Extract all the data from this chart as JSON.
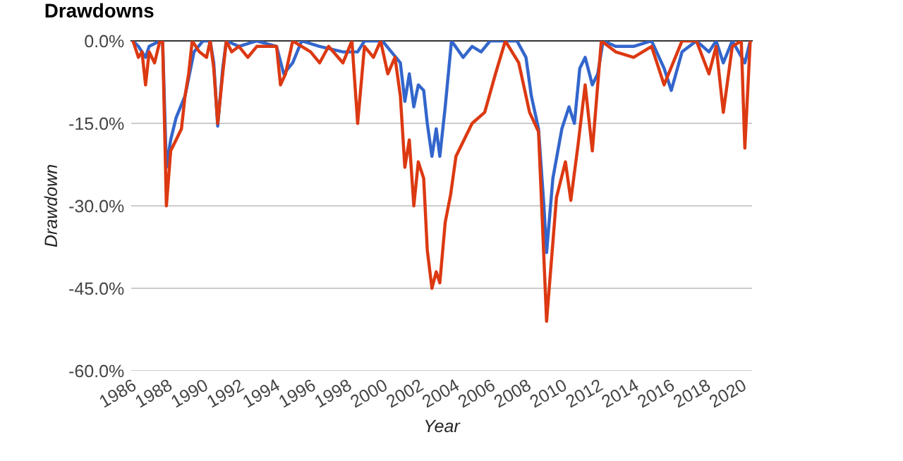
{
  "chart_data": {
    "type": "line",
    "title": "Drawdowns",
    "xlabel": "Year",
    "ylabel": "Drawdown",
    "xlim": [
      1986.0,
      2020.6
    ],
    "xticks": [
      1986,
      1988,
      1990,
      1992,
      1994,
      1996,
      1998,
      2000,
      2002,
      2004,
      2006,
      2008,
      2010,
      2012,
      2014,
      2016,
      2018,
      2020
    ],
    "ylim": [
      -60,
      0
    ],
    "yticks": [
      {
        "value": 0,
        "label": "0.0%"
      },
      {
        "value": -15,
        "label": "-15.0%"
      },
      {
        "value": -30,
        "label": "-30.0%"
      },
      {
        "value": -45,
        "label": "-45.0%"
      },
      {
        "value": -60,
        "label": "-60.0%"
      }
    ],
    "grid": "y",
    "line_style": "solid",
    "marker": "none",
    "series": [
      {
        "color": "#3366cc",
        "x": [
          1986.1,
          1986.4,
          1986.8,
          1987.0,
          1987.6,
          1987.75,
          1987.96,
          1988.2,
          1988.5,
          1989.0,
          1989.5,
          1990.0,
          1990.4,
          1990.6,
          1990.82,
          1991.1,
          1991.3,
          1992.0,
          1993.0,
          1994.1,
          1994.5,
          1995.0,
          1995.5,
          1996.5,
          1997.8,
          1998.62,
          1999.0,
          2000.0,
          2000.5,
          2001.0,
          2001.25,
          2001.5,
          2001.75,
          2002.0,
          2002.3,
          2002.5,
          2002.76,
          2003.0,
          2003.2,
          2003.5,
          2003.85,
          2004.5,
          2005.0,
          2005.5,
          2006.0,
          2007.5,
          2008.0,
          2008.3,
          2008.7,
          2009.0,
          2009.15,
          2009.5,
          2010.0,
          2010.4,
          2010.7,
          2011.0,
          2011.3,
          2011.7,
          2012.0,
          2012.3,
          2013.0,
          2014.0,
          2015.0,
          2015.7,
          2016.1,
          2016.7,
          2017.5,
          2018.2,
          2018.6,
          2019.0,
          2019.5,
          2020.2,
          2020.5
        ],
        "values": [
          0,
          -1,
          -3,
          -1,
          0,
          0,
          -23,
          -18,
          -14,
          -10,
          -2,
          0,
          0,
          -4,
          -15.5,
          -5,
          0,
          -1,
          0,
          -1,
          -6,
          -4,
          0,
          -1,
          -2,
          -2,
          0,
          0,
          -2,
          -4,
          -11,
          -6,
          -12,
          -8,
          -9,
          -15,
          -21,
          -16,
          -21,
          -12,
          0,
          -3,
          -1,
          -2,
          0,
          0,
          -3,
          -10,
          -16,
          -30,
          -38.5,
          -25,
          -16,
          -12,
          -15,
          -5,
          -3,
          -8,
          -6,
          0,
          -1,
          -1,
          0,
          -5,
          -9,
          -2,
          0,
          -2,
          0,
          -4,
          0,
          -4,
          0
        ]
      },
      {
        "color": "#dc3912",
        "x": [
          1986.1,
          1986.4,
          1986.6,
          1986.8,
          1987.0,
          1987.3,
          1987.6,
          1987.75,
          1987.96,
          1988.2,
          1988.5,
          1988.8,
          1989.0,
          1989.2,
          1989.4,
          1989.8,
          1990.2,
          1990.4,
          1990.6,
          1990.82,
          1991.1,
          1991.3,
          1991.6,
          1992.0,
          1992.5,
          1993.0,
          1993.5,
          1994.1,
          1994.32,
          1994.6,
          1995.0,
          1996.0,
          1996.5,
          1997.0,
          1997.8,
          1998.3,
          1998.62,
          1999.0,
          1999.5,
          1999.9,
          2000.3,
          2000.7,
          2001.0,
          2001.25,
          2001.5,
          2001.75,
          2002.0,
          2002.3,
          2002.5,
          2002.76,
          2003.0,
          2003.2,
          2003.5,
          2003.8,
          2004.1,
          2005.0,
          2005.7,
          2006.3,
          2006.85,
          2007.6,
          2008.2,
          2008.7,
          2009.15,
          2009.7,
          2010.2,
          2010.5,
          2010.9,
          2011.3,
          2011.7,
          2012.2,
          2013.0,
          2014.0,
          2015.0,
          2015.7,
          2016.7,
          2017.5,
          2018.2,
          2018.6,
          2019.0,
          2019.5,
          2020.0,
          2020.2,
          2020.5
        ],
        "values": [
          0,
          -3,
          -2,
          -8,
          -2,
          -4,
          0,
          0,
          -30,
          -20,
          -18,
          -16,
          -10,
          -6,
          0,
          -2,
          -3,
          0,
          -5,
          -15,
          -6,
          0,
          -2,
          -1,
          -3,
          -1,
          -1,
          -1,
          -8,
          -6,
          0,
          -2,
          -4,
          -1,
          -4,
          0,
          -15,
          -1,
          -3,
          0,
          -6,
          -3,
          -10,
          -23,
          -18,
          -30,
          -22,
          -25,
          -38,
          -45,
          -42,
          -44,
          -33,
          -28,
          -21,
          -15,
          -13,
          -6,
          0,
          -4,
          -13,
          -16.5,
          -51,
          -28.5,
          -22,
          -29,
          -19,
          -8,
          -20,
          0,
          -2,
          -3,
          -1,
          -8,
          0,
          0,
          -6,
          -1,
          -13,
          -1,
          0,
          -19.5,
          0
        ]
      }
    ]
  }
}
